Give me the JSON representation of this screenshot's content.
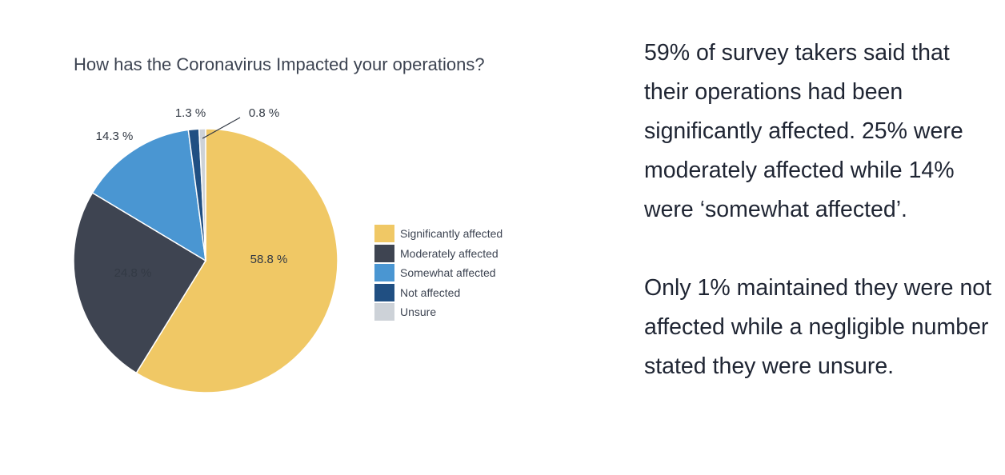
{
  "chart_data": {
    "type": "pie",
    "title": "How has the Coronavirus Impacted your operations?",
    "slices": [
      {
        "label": "Significantly affected",
        "value": 58.8,
        "display": "58.8 %",
        "color": "#f0c865"
      },
      {
        "label": "Moderately affected",
        "value": 24.8,
        "display": "24.8 %",
        "color": "#3e4451"
      },
      {
        "label": "Somewhat affected",
        "value": 14.3,
        "display": "14.3 %",
        "color": "#4a96d2"
      },
      {
        "label": "Not affected",
        "value": 1.3,
        "display": "1.3 %",
        "color": "#204f82"
      },
      {
        "label": "Unsure",
        "value": 0.8,
        "display": "0.8 %",
        "color": "#cdd2d8"
      }
    ],
    "legend_position": "right"
  },
  "text": {
    "paragraph_1": "59% of survey takers said that their operations had been significantly affected. 25% were moderately affected while 14% were ‘somewhat affected’.",
    "paragraph_2": "Only 1% maintained they were not affected while a negligible number stated they were unsure."
  }
}
